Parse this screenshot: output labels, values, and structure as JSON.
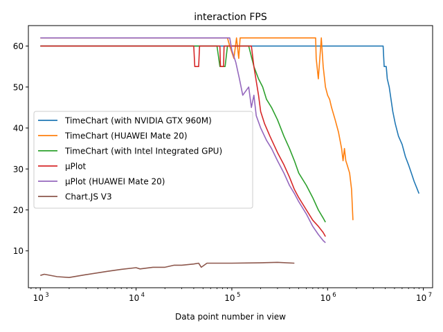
{
  "chart_data": {
    "type": "line",
    "title": "interaction FPS",
    "xlabel": "Data point number in view",
    "ylabel": "",
    "x_scale": "log",
    "xlim": [
      750,
      12500000
    ],
    "ylim": [
      1,
      65
    ],
    "x_ticks": [
      {
        "value": 1000,
        "base": "10",
        "exp": "3"
      },
      {
        "value": 10000,
        "base": "10",
        "exp": "4"
      },
      {
        "value": 100000,
        "base": "10",
        "exp": "5"
      },
      {
        "value": 1000000,
        "base": "10",
        "exp": "6"
      },
      {
        "value": 10000000,
        "base": "10",
        "exp": "7"
      }
    ],
    "y_ticks": [
      "10",
      "20",
      "30",
      "40",
      "50",
      "60"
    ],
    "grid": false,
    "legend_position": "center-left",
    "series": [
      {
        "name": "TimeChart (with NVIDIA GTX 960M)",
        "color": "#1f77b4",
        "points": [
          [
            1000,
            60
          ],
          [
            10000,
            60
          ],
          [
            100000,
            60
          ],
          [
            150000,
            60
          ],
          [
            1000000,
            60
          ],
          [
            3000000,
            60
          ],
          [
            3800000,
            60
          ],
          [
            3900000,
            55
          ],
          [
            4100000,
            55
          ],
          [
            4200000,
            52
          ],
          [
            4400000,
            50
          ],
          [
            4600000,
            47
          ],
          [
            4800000,
            44
          ],
          [
            5100000,
            41
          ],
          [
            5500000,
            38
          ],
          [
            6000000,
            36
          ],
          [
            6500000,
            33
          ],
          [
            7000000,
            31
          ],
          [
            7500000,
            29
          ],
          [
            8000000,
            27
          ],
          [
            8500000,
            25.5
          ],
          [
            9000000,
            24
          ]
        ]
      },
      {
        "name": "TimeChart (HUAWEI Mate 20)",
        "color": "#ff7f0e",
        "points": [
          [
            1000,
            62
          ],
          [
            10000,
            62
          ],
          [
            90000,
            62
          ],
          [
            95000,
            60
          ],
          [
            105000,
            57
          ],
          [
            112000,
            62
          ],
          [
            118000,
            57
          ],
          [
            122000,
            62
          ],
          [
            180000,
            62
          ],
          [
            500000,
            62
          ],
          [
            750000,
            62
          ],
          [
            760000,
            57
          ],
          [
            800000,
            52
          ],
          [
            860000,
            62
          ],
          [
            900000,
            55
          ],
          [
            950000,
            50
          ],
          [
            1000000,
            48
          ],
          [
            1050000,
            47
          ],
          [
            1100000,
            45
          ],
          [
            1200000,
            42
          ],
          [
            1300000,
            39
          ],
          [
            1400000,
            35
          ],
          [
            1450000,
            32
          ],
          [
            1500000,
            35
          ],
          [
            1550000,
            32
          ],
          [
            1600000,
            31
          ],
          [
            1700000,
            29
          ],
          [
            1780000,
            25
          ],
          [
            1840000,
            17.5
          ]
        ]
      },
      {
        "name": "TimeChart (with Intel Integrated GPU)",
        "color": "#2ca02c",
        "points": [
          [
            1000,
            60
          ],
          [
            10000,
            60
          ],
          [
            70000,
            60
          ],
          [
            75000,
            55
          ],
          [
            85000,
            55
          ],
          [
            90000,
            60
          ],
          [
            150000,
            60
          ],
          [
            170000,
            55
          ],
          [
            190000,
            52
          ],
          [
            210000,
            50
          ],
          [
            230000,
            47
          ],
          [
            260000,
            45
          ],
          [
            300000,
            42
          ],
          [
            350000,
            38
          ],
          [
            400000,
            35
          ],
          [
            450000,
            32
          ],
          [
            500000,
            29
          ],
          [
            600000,
            26
          ],
          [
            700000,
            23
          ],
          [
            800000,
            20
          ],
          [
            900000,
            18
          ],
          [
            950000,
            17
          ]
        ]
      },
      {
        "name": "μPlot",
        "color": "#d62728",
        "points": [
          [
            1000,
            60
          ],
          [
            10000,
            60
          ],
          [
            40000,
            60
          ],
          [
            41000,
            55
          ],
          [
            45000,
            55
          ],
          [
            46000,
            60
          ],
          [
            75000,
            60
          ],
          [
            76000,
            55
          ],
          [
            82000,
            55
          ],
          [
            83000,
            60
          ],
          [
            160000,
            60
          ],
          [
            170000,
            55
          ],
          [
            190000,
            48
          ],
          [
            200000,
            44
          ],
          [
            220000,
            41
          ],
          [
            250000,
            38
          ],
          [
            300000,
            34
          ],
          [
            350000,
            31
          ],
          [
            400000,
            28
          ],
          [
            450000,
            25
          ],
          [
            500000,
            23
          ],
          [
            600000,
            20
          ],
          [
            700000,
            17.5
          ],
          [
            800000,
            16
          ],
          [
            900000,
            14.5
          ],
          [
            950000,
            13.5
          ]
        ]
      },
      {
        "name": "μPlot (HUAWEI Mate 20)",
        "color": "#9467bd",
        "points": [
          [
            1000,
            62
          ],
          [
            10000,
            62
          ],
          [
            80000,
            62
          ],
          [
            95000,
            62
          ],
          [
            100000,
            59
          ],
          [
            110000,
            56
          ],
          [
            120000,
            52
          ],
          [
            130000,
            48
          ],
          [
            150000,
            50
          ],
          [
            160000,
            45
          ],
          [
            170000,
            48
          ],
          [
            180000,
            43
          ],
          [
            200000,
            40
          ],
          [
            230000,
            37
          ],
          [
            260000,
            35
          ],
          [
            300000,
            32
          ],
          [
            350000,
            29
          ],
          [
            400000,
            26
          ],
          [
            450000,
            24
          ],
          [
            500000,
            22
          ],
          [
            600000,
            19
          ],
          [
            700000,
            16
          ],
          [
            800000,
            14
          ],
          [
            900000,
            12.5
          ],
          [
            950000,
            12
          ]
        ]
      },
      {
        "name": "Chart.JS V3",
        "color": "#8c564b",
        "points": [
          [
            1000,
            4
          ],
          [
            1100,
            4.3
          ],
          [
            1500,
            3.7
          ],
          [
            2000,
            3.5
          ],
          [
            3000,
            4.2
          ],
          [
            5000,
            5
          ],
          [
            7000,
            5.5
          ],
          [
            10000,
            5.9
          ],
          [
            11000,
            5.6
          ],
          [
            15000,
            6
          ],
          [
            20000,
            6
          ],
          [
            25000,
            6.5
          ],
          [
            30000,
            6.5
          ],
          [
            40000,
            6.8
          ],
          [
            45000,
            7
          ],
          [
            48000,
            6
          ],
          [
            55000,
            7
          ],
          [
            100000,
            7
          ],
          [
            200000,
            7.1
          ],
          [
            300000,
            7.2
          ],
          [
            450000,
            7
          ]
        ]
      }
    ]
  }
}
